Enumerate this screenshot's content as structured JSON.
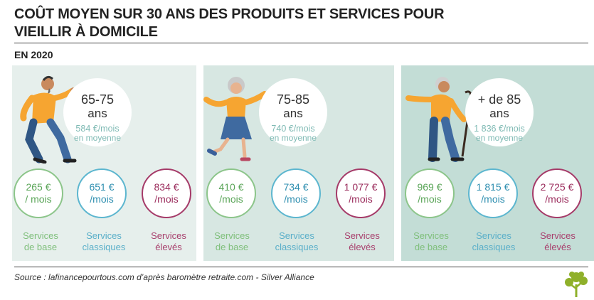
{
  "title": "COÛT MOYEN SUR 30 ANS DES PRODUITS ET SERVICES POUR VIEILLIR À DOMICILE",
  "subtitle": "EN 2020",
  "groups": [
    {
      "age": "65-75",
      "ans": "ans",
      "average": "584 €/mois",
      "average_note": "en moyenne",
      "services": [
        {
          "amount": "265 €",
          "unit": "/ mois",
          "label1": "Services",
          "label2": "de base"
        },
        {
          "amount": "651 €",
          "unit": "/mois",
          "label1": "Services",
          "label2": "classiques"
        },
        {
          "amount": "834 €",
          "unit": "/mois",
          "label1": "Services",
          "label2": "élevés"
        }
      ]
    },
    {
      "age": "75-85",
      "ans": "ans",
      "average": "740 €/mois",
      "average_note": "en moyenne",
      "services": [
        {
          "amount": "410 €",
          "unit": "/mois",
          "label1": "Services",
          "label2": "de base"
        },
        {
          "amount": "734 €",
          "unit": "/mois",
          "label1": "Services",
          "label2": "classiques"
        },
        {
          "amount": "1 077 €",
          "unit": "/mois",
          "label1": "Services",
          "label2": "élevés"
        }
      ]
    },
    {
      "age": "+ de 85",
      "ans": "ans",
      "average": "1 836 €/mois",
      "average_note": "en moyenne",
      "services": [
        {
          "amount": "969 €",
          "unit": "/mois",
          "label1": "Services",
          "label2": "de base"
        },
        {
          "amount": "1 815 €",
          "unit": "/mois",
          "label1": "Services",
          "label2": "classiques"
        },
        {
          "amount": "2 725 €",
          "unit": "/mois",
          "label1": "Services",
          "label2": "élevés"
        }
      ]
    }
  ],
  "source": "Source : lafinancepourtous.com d’après baromètre retraite.com - Silver Alliance",
  "colors": {
    "base": "#8cc58a",
    "classic": "#5cb6cf",
    "high": "#a53a68",
    "average_text": "#7fbab4",
    "shirt": "#f6a531",
    "trousers": "#3f6aa0"
  },
  "icons": [
    "dancing-man-figure",
    "dancing-woman-figure",
    "man-with-cane-figure",
    "tree-logo"
  ]
}
